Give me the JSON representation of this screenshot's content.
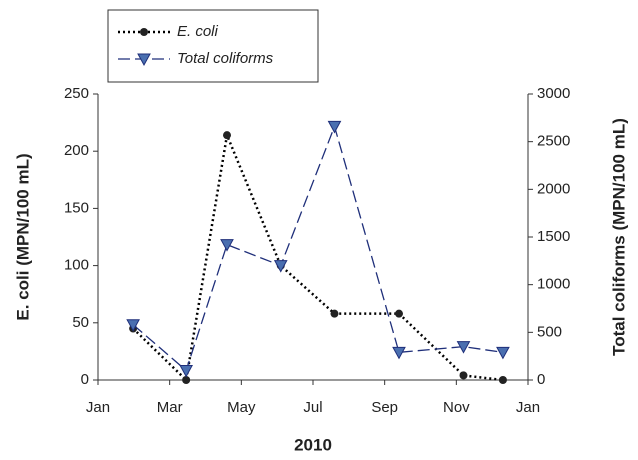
{
  "chart_data": {
    "type": "line",
    "x_label": "2010",
    "y_label": "E. coli (MPN/100 mL)",
    "y2_label": "Total coliforms (MPN/100 mL)",
    "x": [
      0.98,
      2.46,
      3.6,
      5.1,
      6.6,
      8.4,
      10.2,
      11.3
    ],
    "xlim": [
      0,
      12
    ],
    "xticks": [
      {
        "value": 0,
        "label": "Jan"
      },
      {
        "value": 2,
        "label": "Mar"
      },
      {
        "value": 4,
        "label": "May"
      },
      {
        "value": 6,
        "label": "Jul"
      },
      {
        "value": 8,
        "label": "Sep"
      },
      {
        "value": 10,
        "label": "Nov"
      },
      {
        "value": 12,
        "label": "Jan"
      }
    ],
    "ylim": [
      0,
      250
    ],
    "yticks": [
      0,
      50,
      100,
      150,
      200,
      250
    ],
    "y2lim": [
      0,
      3000
    ],
    "y2ticks": [
      0,
      500,
      1000,
      1500,
      2000,
      2500,
      3000
    ],
    "legend": "top-left",
    "series": [
      {
        "name": "E. coli",
        "color": "#000000",
        "axis": "y",
        "values": [
          45,
          0,
          214,
          100,
          58,
          58,
          4,
          0
        ]
      },
      {
        "name": "Total coliforms",
        "color": "#1f2f7a",
        "axis": "y2",
        "values": [
          580,
          100,
          1420,
          1200,
          2660,
          290,
          350,
          290
        ]
      }
    ]
  }
}
